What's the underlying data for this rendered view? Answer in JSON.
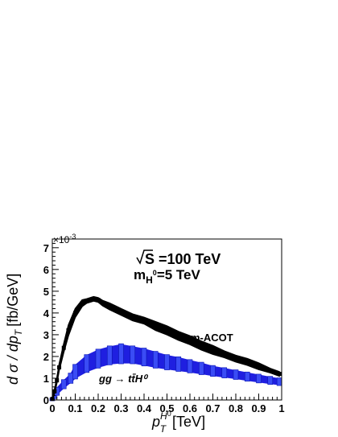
{
  "chart_data": {
    "type": "scatter",
    "energy_label": "S =100 TeV",
    "mass_label_main": "m",
    "mass_label_sub": "H",
    "mass_label_sup": "0",
    "mass_label_value": "=5 TeV",
    "y_multiplier": "×10",
    "y_multiplier_exp": "-3",
    "xlabel_symbol": "p",
    "xlabel_sup": "H",
    "xlabel_sup_sup": "0",
    "xlabel_sub": "T",
    "xlabel_unit": "[TeV]",
    "ylabel": "d σ / dp",
    "ylabel_sub": "T",
    "ylabel_unit": "[fb/GeV]",
    "xlim": [
      0,
      1
    ],
    "ylim": [
      0,
      7.4
    ],
    "x_ticks": [
      "0",
      "0.1",
      "0.2",
      "0.3",
      "0.4",
      "0.5",
      "0.6",
      "0.7",
      "0.8",
      "0.9",
      "1"
    ],
    "y_ticks": [
      "0",
      "1",
      "2",
      "3",
      "4",
      "5",
      "6",
      "7"
    ],
    "grid": false,
    "series": [
      {
        "name": "m-ACOT",
        "color": "#000000",
        "x": [
          0.0,
          0.01,
          0.02,
          0.03,
          0.05,
          0.07,
          0.1,
          0.13,
          0.15,
          0.18,
          0.2,
          0.22,
          0.25,
          0.3,
          0.35,
          0.4,
          0.45,
          0.5,
          0.55,
          0.6,
          0.65,
          0.7,
          0.75,
          0.8,
          0.85,
          0.9,
          0.95,
          0.99
        ],
        "y": [
          0.05,
          0.4,
          0.9,
          1.5,
          2.4,
          3.2,
          4.0,
          4.45,
          4.55,
          4.65,
          4.6,
          4.45,
          4.3,
          4.05,
          3.8,
          3.65,
          3.4,
          3.2,
          2.95,
          2.75,
          2.5,
          2.3,
          2.1,
          1.9,
          1.75,
          1.55,
          1.35,
          1.2
        ],
        "err": [
          0.02,
          0.1,
          0.12,
          0.15,
          0.2,
          0.25,
          0.2,
          0.15,
          0.1,
          0.1,
          0.1,
          0.12,
          0.15,
          0.15,
          0.15,
          0.15,
          0.2,
          0.2,
          0.2,
          0.2,
          0.2,
          0.2,
          0.15,
          0.15,
          0.15,
          0.15,
          0.1,
          0.1
        ]
      },
      {
        "name": "gg → tt̄H⁰",
        "color": "#1f1fe0",
        "x": [
          0.0,
          0.01,
          0.02,
          0.05,
          0.08,
          0.1,
          0.15,
          0.2,
          0.25,
          0.3,
          0.35,
          0.4,
          0.45,
          0.5,
          0.55,
          0.6,
          0.65,
          0.7,
          0.75,
          0.8,
          0.85,
          0.9,
          0.95,
          0.99
        ],
        "lo": [
          0.0,
          0.1,
          0.25,
          0.55,
          0.8,
          1.0,
          1.3,
          1.5,
          1.65,
          1.7,
          1.7,
          1.6,
          1.5,
          1.42,
          1.35,
          1.28,
          1.2,
          1.12,
          1.05,
          0.98,
          0.9,
          0.82,
          0.75,
          0.7
        ],
        "hi": [
          0.05,
          0.3,
          0.55,
          0.9,
          1.2,
          1.6,
          2.05,
          2.3,
          2.45,
          2.55,
          2.45,
          2.35,
          2.2,
          2.05,
          1.95,
          1.82,
          1.7,
          1.55,
          1.45,
          1.35,
          1.25,
          1.15,
          1.05,
          0.98
        ]
      }
    ]
  }
}
